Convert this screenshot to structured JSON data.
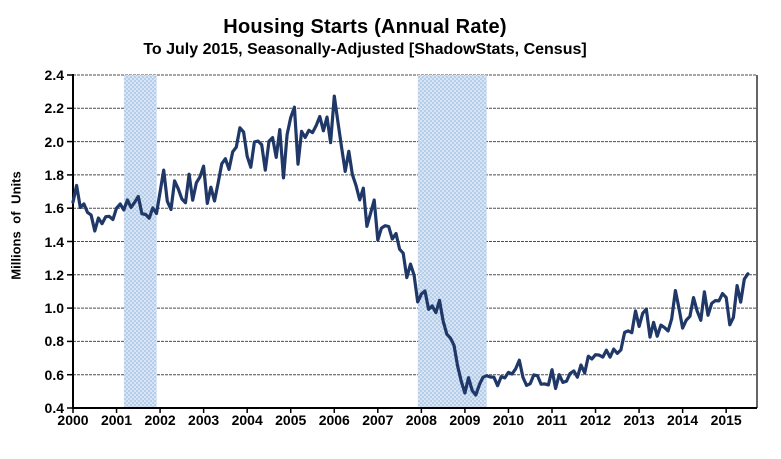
{
  "header": {
    "title": "Housing Starts (Annual Rate)",
    "subtitle": "To July 2015, Seasonally-Adjusted [ShadowStats, Census]"
  },
  "chart_data": {
    "type": "line",
    "title": "Housing Starts (Annual Rate)",
    "subtitle": "To July 2015, Seasonally-Adjusted [ShadowStats, Census]",
    "ylabel": "Millions of Units",
    "xlabel": "",
    "ylim": [
      0.4,
      2.4
    ],
    "ytick_step": 0.2,
    "ytick_labels": [
      "2.4",
      "2.2",
      "2.0",
      "1.8",
      "1.6",
      "1.4",
      "1.2",
      "1.0",
      "0.8",
      "0.6",
      "0.4"
    ],
    "xlim": [
      2000.0,
      2015.708
    ],
    "xtick_labels": [
      "2000",
      "2001",
      "2002",
      "2003",
      "2004",
      "2005",
      "2006",
      "2007",
      "2008",
      "2009",
      "2010",
      "2011",
      "2012",
      "2013",
      "2014",
      "2015"
    ],
    "grid": "horizontal-dashed",
    "legend": "none",
    "recession_bands": [
      {
        "name": "2001-recession",
        "start": 2001.17,
        "end": 2001.92
      },
      {
        "name": "2007-2009-recession",
        "start": 2007.92,
        "end": 2009.5
      }
    ],
    "series": [
      {
        "name": "Housing Starts",
        "start_month": "2000-01",
        "end_month": "2015-07",
        "frequency": "monthly",
        "values": [
          1.636,
          1.737,
          1.604,
          1.626,
          1.575,
          1.559,
          1.463,
          1.541,
          1.507,
          1.549,
          1.551,
          1.532,
          1.6,
          1.625,
          1.59,
          1.649,
          1.605,
          1.636,
          1.67,
          1.567,
          1.562,
          1.54,
          1.602,
          1.568,
          1.698,
          1.829,
          1.642,
          1.592,
          1.764,
          1.717,
          1.655,
          1.633,
          1.804,
          1.648,
          1.753,
          1.788,
          1.853,
          1.629,
          1.726,
          1.643,
          1.751,
          1.867,
          1.897,
          1.833,
          1.939,
          1.967,
          2.083,
          2.057,
          1.911,
          1.846,
          1.998,
          2.003,
          1.981,
          1.828,
          2.002,
          2.024,
          1.905,
          2.072,
          1.782,
          2.042,
          2.144,
          2.207,
          1.864,
          2.061,
          2.025,
          2.068,
          2.054,
          2.095,
          2.151,
          2.065,
          2.147,
          1.994,
          2.273,
          2.119,
          1.969,
          1.821,
          1.942,
          1.802,
          1.737,
          1.65,
          1.72,
          1.491,
          1.57,
          1.649,
          1.409,
          1.48,
          1.495,
          1.49,
          1.415,
          1.448,
          1.354,
          1.33,
          1.183,
          1.264,
          1.197,
          1.037,
          1.084,
          1.103,
          0.993,
          1.013,
          0.973,
          1.046,
          0.923,
          0.844,
          0.82,
          0.777,
          0.652,
          0.56,
          0.49,
          0.582,
          0.505,
          0.478,
          0.54,
          0.585,
          0.594,
          0.586,
          0.585,
          0.534,
          0.588,
          0.581,
          0.614,
          0.604,
          0.636,
          0.687,
          0.583,
          0.536,
          0.546,
          0.599,
          0.594,
          0.543,
          0.545,
          0.539,
          0.63,
          0.517,
          0.6,
          0.554,
          0.561,
          0.608,
          0.623,
          0.585,
          0.658,
          0.61,
          0.711,
          0.694,
          0.72,
          0.718,
          0.706,
          0.747,
          0.706,
          0.754,
          0.728,
          0.749,
          0.854,
          0.863,
          0.852,
          0.983,
          0.89,
          0.969,
          0.994,
          0.826,
          0.914,
          0.831,
          0.898,
          0.883,
          0.863,
          0.936,
          1.105,
          0.999,
          0.88,
          0.928,
          0.95,
          1.063,
          0.984,
          0.927,
          1.098,
          0.957,
          1.028,
          1.045,
          1.043,
          1.087,
          1.063,
          0.9,
          0.944,
          1.135,
          1.036,
          1.174,
          1.206
        ]
      }
    ],
    "colors": {
      "line": "#1F3868",
      "band_fill": "#B6CEE9",
      "band_dot": "#FFFFFF",
      "grid": "#4D4D4D",
      "axis": "#000000",
      "background": "#FFFFFF"
    }
  }
}
